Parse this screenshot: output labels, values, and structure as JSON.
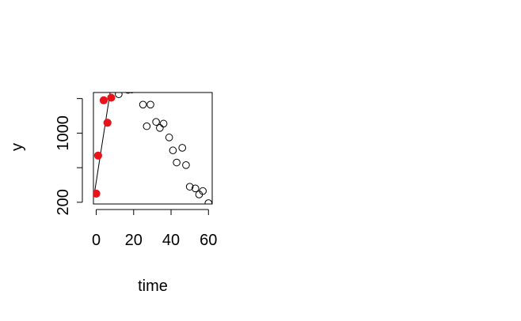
{
  "chart_data": {
    "type": "scatter",
    "xlabel": "time",
    "ylabel": "y",
    "xlim": [
      -1.5,
      62
    ],
    "ylim": [
      180,
      1470
    ],
    "x_ticks": [
      0,
      20,
      40,
      60
    ],
    "x_tick_labels": [
      "0",
      "20",
      "40",
      "60"
    ],
    "y_ticks": [
      200,
      600,
      1000,
      1400
    ],
    "y_tick_labels": [
      "200",
      "",
      "1000",
      ""
    ],
    "series": [
      {
        "style": "open-circle",
        "color": "#000000",
        "points": [
          [
            10,
            1520
          ],
          [
            12,
            1450
          ],
          [
            14,
            1510
          ],
          [
            17,
            1500
          ],
          [
            19,
            1505
          ],
          [
            21,
            1515
          ],
          [
            25,
            1330
          ],
          [
            27,
            1080
          ],
          [
            29,
            1330
          ],
          [
            32,
            1130
          ],
          [
            34,
            1060
          ],
          [
            36,
            1110
          ],
          [
            39,
            950
          ],
          [
            41,
            800
          ],
          [
            43,
            660
          ],
          [
            46,
            830
          ],
          [
            48,
            630
          ],
          [
            50,
            380
          ],
          [
            53,
            360
          ],
          [
            55,
            290
          ],
          [
            57,
            330
          ],
          [
            60,
            190
          ]
        ]
      },
      {
        "style": "filled-circle",
        "color": "#e8141a",
        "points": [
          [
            0,
            300
          ],
          [
            1,
            740
          ],
          [
            4,
            1380
          ],
          [
            6,
            1120
          ],
          [
            8,
            1410
          ]
        ]
      }
    ],
    "line": {
      "color": "#000000",
      "points": [
        [
          -1,
          300
        ],
        [
          8.5,
          1620
        ]
      ]
    }
  }
}
